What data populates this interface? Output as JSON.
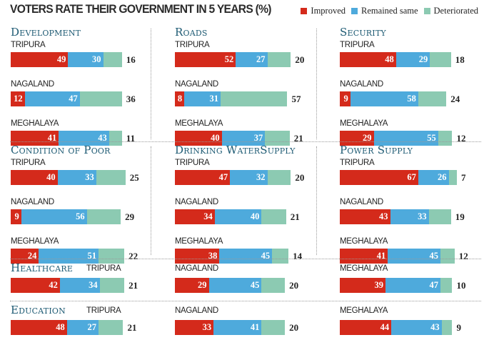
{
  "title": "VOTERS RATE THEIR GOVERNMENT IN 5 YEARS (%)",
  "legend": [
    {
      "label": "Improved",
      "color": "#d42a1b"
    },
    {
      "label": "Remained same",
      "color": "#4eaadc"
    },
    {
      "label": "Deteriorated",
      "color": "#8ccab2"
    }
  ],
  "chart_data": {
    "type": "bar",
    "orientation": "horizontal-stacked",
    "title": "VOTERS RATE THEIR GOVERNMENT IN 5 YEARS (%)",
    "unit": "%",
    "legend_position": "top-right",
    "series_names": [
      "Improved",
      "Remained same",
      "Deteriorated"
    ],
    "panels": [
      {
        "title": "Development",
        "rows": [
          {
            "state": "TRIPURA",
            "values": [
              49,
              30,
              16
            ]
          },
          {
            "state": "NAGALAND",
            "values": [
              12,
              47,
              36
            ]
          },
          {
            "state": "MEGHALAYA",
            "values": [
              41,
              43,
              11
            ]
          }
        ]
      },
      {
        "title": "Roads",
        "rows": [
          {
            "state": "TRIPURA",
            "values": [
              52,
              27,
              20
            ]
          },
          {
            "state": "NAGALAND",
            "values": [
              8,
              31,
              57
            ]
          },
          {
            "state": "MEGHALAYA",
            "values": [
              40,
              37,
              21
            ]
          }
        ]
      },
      {
        "title": "Security",
        "rows": [
          {
            "state": "TRIPURA",
            "values": [
              48,
              29,
              18
            ]
          },
          {
            "state": "NAGALAND",
            "values": [
              9,
              58,
              24
            ]
          },
          {
            "state": "MEGHALAYA",
            "values": [
              29,
              55,
              12
            ]
          }
        ]
      },
      {
        "title": "Condition of Poor",
        "rows": [
          {
            "state": "TRIPURA",
            "values": [
              40,
              33,
              25
            ]
          },
          {
            "state": "NAGALAND",
            "values": [
              9,
              56,
              29
            ]
          },
          {
            "state": "MEGHALAYA",
            "values": [
              24,
              51,
              22
            ]
          }
        ]
      },
      {
        "title": "Drinking WaterSupply",
        "rows": [
          {
            "state": "TRIPURA",
            "values": [
              47,
              32,
              20
            ]
          },
          {
            "state": "NAGALAND",
            "values": [
              34,
              40,
              21
            ]
          },
          {
            "state": "MEGHALAYA",
            "values": [
              38,
              45,
              14
            ]
          }
        ]
      },
      {
        "title": "Power Supply",
        "rows": [
          {
            "state": "TRIPURA",
            "values": [
              67,
              26,
              7
            ]
          },
          {
            "state": "NAGALAND",
            "values": [
              43,
              33,
              19
            ]
          },
          {
            "state": "MEGHALAYA",
            "values": [
              41,
              45,
              12
            ]
          }
        ]
      },
      {
        "title": "Healthcare",
        "rows": [
          {
            "state": "TRIPURA",
            "values": [
              42,
              34,
              21
            ]
          },
          {
            "state": "NAGALAND",
            "values": [
              29,
              45,
              20
            ]
          },
          {
            "state": "MEGHALAYA",
            "values": [
              39,
              47,
              10
            ]
          }
        ]
      },
      {
        "title": "Education",
        "rows": [
          {
            "state": "TRIPURA",
            "values": [
              48,
              27,
              21
            ]
          },
          {
            "state": "NAGALAND",
            "values": [
              33,
              41,
              20
            ]
          },
          {
            "state": "MEGHALAYA",
            "values": [
              44,
              43,
              9
            ]
          }
        ]
      }
    ]
  }
}
